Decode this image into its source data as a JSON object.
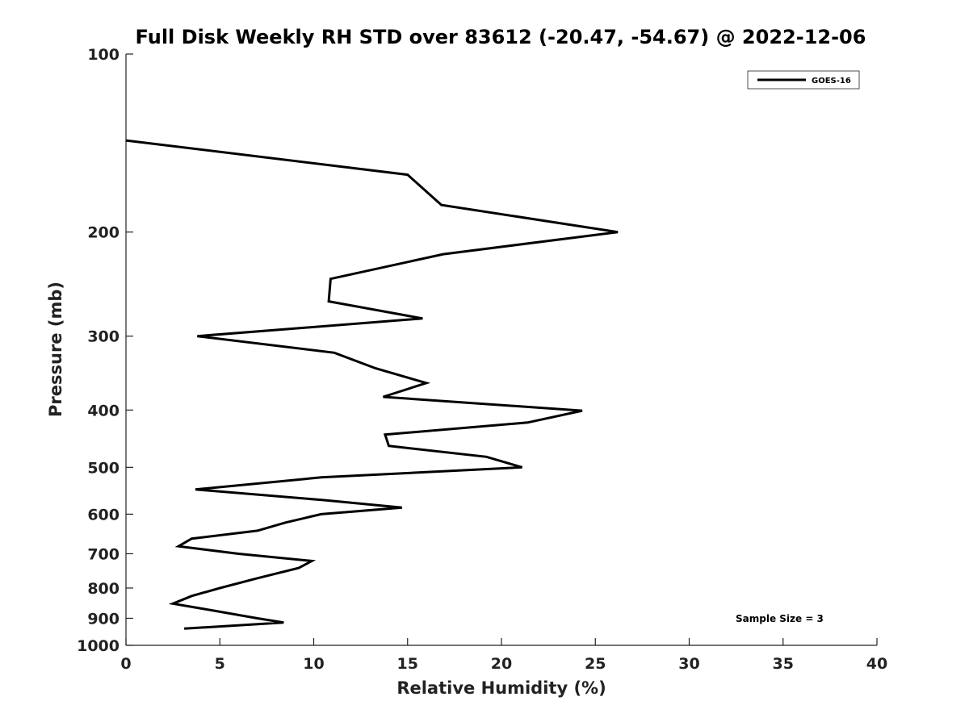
{
  "chart_data": {
    "type": "line",
    "title": "Full Disk Weekly RH STD over 83612 (-20.47, -54.67) @ 2022-12-06",
    "xlabel": "Relative Humidity (%)",
    "ylabel": "Pressure (mb)",
    "xlim": [
      0,
      40
    ],
    "ylim": [
      100,
      1000
    ],
    "yscale": "log",
    "y_reversed": true,
    "x_ticks": [
      0,
      5,
      10,
      15,
      20,
      25,
      30,
      35,
      40
    ],
    "y_ticks": [
      100,
      200,
      300,
      400,
      500,
      600,
      700,
      800,
      900,
      1000
    ],
    "grid": false,
    "legend_position": "top-right",
    "annotation": "Sample Size = 3",
    "series": [
      {
        "name": "GOES-16",
        "color": "#000000",
        "points": [
          {
            "x": 0.0,
            "y": 140
          },
          {
            "x": 15.0,
            "y": 160
          },
          {
            "x": 16.8,
            "y": 180
          },
          {
            "x": 26.2,
            "y": 200
          },
          {
            "x": 16.9,
            "y": 218
          },
          {
            "x": 10.9,
            "y": 240
          },
          {
            "x": 10.8,
            "y": 262
          },
          {
            "x": 15.8,
            "y": 280
          },
          {
            "x": 3.8,
            "y": 300
          },
          {
            "x": 11.1,
            "y": 320
          },
          {
            "x": 13.3,
            "y": 340
          },
          {
            "x": 16.0,
            "y": 360
          },
          {
            "x": 13.7,
            "y": 380
          },
          {
            "x": 24.3,
            "y": 401
          },
          {
            "x": 21.4,
            "y": 420
          },
          {
            "x": 13.8,
            "y": 440
          },
          {
            "x": 14.0,
            "y": 460
          },
          {
            "x": 19.2,
            "y": 480
          },
          {
            "x": 21.1,
            "y": 500
          },
          {
            "x": 10.4,
            "y": 520
          },
          {
            "x": 3.7,
            "y": 545
          },
          {
            "x": 10.5,
            "y": 568
          },
          {
            "x": 14.7,
            "y": 585
          },
          {
            "x": 10.4,
            "y": 600
          },
          {
            "x": 8.5,
            "y": 620
          },
          {
            "x": 7.0,
            "y": 640
          },
          {
            "x": 3.5,
            "y": 660
          },
          {
            "x": 2.8,
            "y": 680
          },
          {
            "x": 6.0,
            "y": 700
          },
          {
            "x": 9.9,
            "y": 720
          },
          {
            "x": 9.2,
            "y": 740
          },
          {
            "x": 7.0,
            "y": 770
          },
          {
            "x": 5.0,
            "y": 800
          },
          {
            "x": 3.5,
            "y": 825
          },
          {
            "x": 2.5,
            "y": 850
          },
          {
            "x": 4.8,
            "y": 875
          },
          {
            "x": 7.0,
            "y": 900
          },
          {
            "x": 8.4,
            "y": 915
          },
          {
            "x": 3.1,
            "y": 937
          }
        ]
      }
    ]
  }
}
